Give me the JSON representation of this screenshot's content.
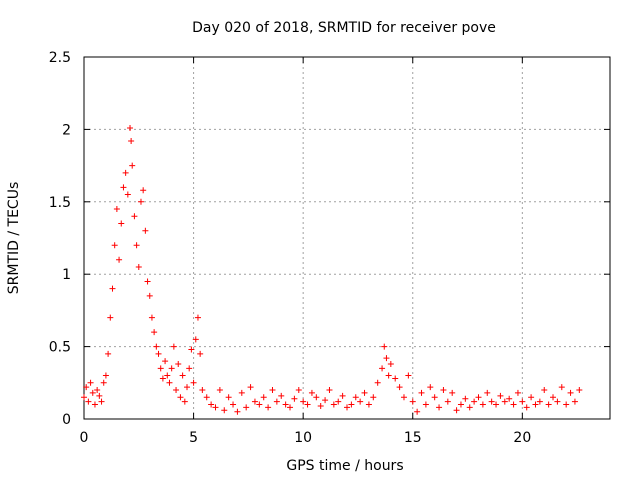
{
  "chart_data": {
    "type": "scatter",
    "title": "Day 020 of 2018, SRMTID for receiver pove",
    "xlabel": "GPS time / hours",
    "ylabel": "SRMTID / TECUs",
    "xlim": [
      0,
      24
    ],
    "ylim": [
      0,
      2.5
    ],
    "xticks": [
      0,
      5,
      10,
      15,
      20
    ],
    "yticks": [
      0,
      0.5,
      1,
      1.5,
      2,
      2.5
    ],
    "xtick_labels": [
      "0",
      "5",
      "10",
      "15",
      "20"
    ],
    "ytick_labels": [
      "0",
      "0.5",
      "1",
      "1.5",
      "2",
      "2.5"
    ],
    "grid": true,
    "marker": "+",
    "color": "#ff0000",
    "series": [
      {
        "name": "SRMTID",
        "x": [
          0.0,
          0.1,
          0.2,
          0.3,
          0.4,
          0.5,
          0.6,
          0.7,
          0.8,
          0.9,
          1.0,
          1.1,
          1.2,
          1.3,
          1.4,
          1.5,
          1.6,
          1.7,
          1.8,
          1.9,
          2.0,
          2.1,
          2.15,
          2.2,
          2.3,
          2.4,
          2.5,
          2.6,
          2.7,
          2.8,
          2.9,
          3.0,
          3.1,
          3.2,
          3.3,
          3.4,
          3.5,
          3.6,
          3.7,
          3.8,
          3.9,
          4.0,
          4.1,
          4.2,
          4.3,
          4.4,
          4.5,
          4.6,
          4.7,
          4.8,
          4.9,
          5.0,
          5.1,
          5.2,
          5.3,
          5.4,
          5.6,
          5.8,
          6.0,
          6.2,
          6.4,
          6.6,
          6.8,
          7.0,
          7.2,
          7.4,
          7.6,
          7.8,
          8.0,
          8.2,
          8.4,
          8.6,
          8.8,
          9.0,
          9.2,
          9.4,
          9.6,
          9.8,
          10.0,
          10.2,
          10.4,
          10.6,
          10.8,
          11.0,
          11.2,
          11.4,
          11.6,
          11.8,
          12.0,
          12.2,
          12.4,
          12.6,
          12.8,
          13.0,
          13.2,
          13.4,
          13.6,
          13.7,
          13.8,
          13.9,
          14.0,
          14.2,
          14.4,
          14.6,
          14.8,
          15.0,
          15.2,
          15.4,
          15.6,
          15.8,
          16.0,
          16.2,
          16.4,
          16.6,
          16.8,
          17.0,
          17.2,
          17.4,
          17.6,
          17.8,
          18.0,
          18.2,
          18.4,
          18.6,
          18.8,
          19.0,
          19.2,
          19.4,
          19.6,
          19.8,
          20.0,
          20.2,
          20.4,
          20.6,
          20.8,
          21.0,
          21.2,
          21.4,
          21.6,
          21.8,
          22.0,
          22.2,
          22.4,
          22.6
        ],
        "y": [
          0.15,
          0.22,
          0.12,
          0.25,
          0.18,
          0.1,
          0.2,
          0.16,
          0.12,
          0.25,
          0.3,
          0.45,
          0.7,
          0.9,
          1.2,
          1.45,
          1.1,
          1.35,
          1.6,
          1.7,
          1.55,
          2.01,
          1.92,
          1.75,
          1.4,
          1.2,
          1.05,
          1.5,
          1.58,
          1.3,
          0.95,
          0.85,
          0.7,
          0.6,
          0.5,
          0.45,
          0.35,
          0.28,
          0.4,
          0.3,
          0.25,
          0.35,
          0.5,
          0.2,
          0.38,
          0.15,
          0.3,
          0.12,
          0.22,
          0.35,
          0.48,
          0.25,
          0.55,
          0.7,
          0.45,
          0.2,
          0.15,
          0.1,
          0.08,
          0.2,
          0.06,
          0.15,
          0.1,
          0.05,
          0.18,
          0.08,
          0.22,
          0.12,
          0.1,
          0.15,
          0.08,
          0.2,
          0.12,
          0.16,
          0.1,
          0.08,
          0.14,
          0.2,
          0.12,
          0.1,
          0.18,
          0.15,
          0.09,
          0.13,
          0.2,
          0.1,
          0.12,
          0.16,
          0.08,
          0.1,
          0.15,
          0.12,
          0.18,
          0.1,
          0.15,
          0.25,
          0.35,
          0.5,
          0.42,
          0.3,
          0.38,
          0.28,
          0.22,
          0.15,
          0.3,
          0.12,
          0.05,
          0.18,
          0.1,
          0.22,
          0.15,
          0.08,
          0.2,
          0.12,
          0.18,
          0.06,
          0.1,
          0.14,
          0.08,
          0.12,
          0.15,
          0.1,
          0.18,
          0.12,
          0.1,
          0.16,
          0.12,
          0.14,
          0.1,
          0.18,
          0.12,
          0.08,
          0.15,
          0.1,
          0.12,
          0.2,
          0.1,
          0.15,
          0.12,
          0.22,
          0.1,
          0.18,
          0.12,
          0.2
        ]
      }
    ]
  }
}
